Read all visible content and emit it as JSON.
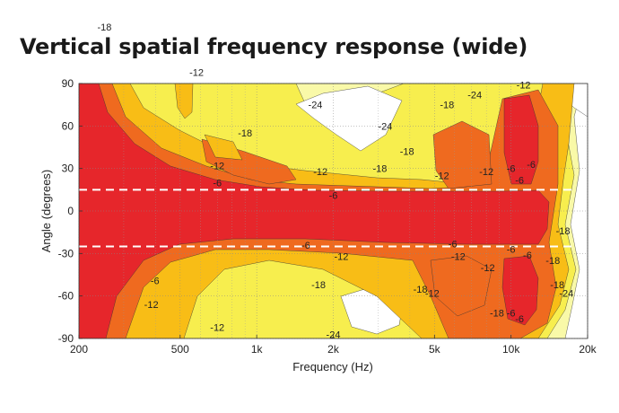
{
  "title": "Vertical spatial frequency response (wide)",
  "chart_data": {
    "type": "heatmap",
    "title": "Vertical spatial frequency response (wide)",
    "xlabel": "Frequency (Hz)",
    "ylabel": "Angle (degrees)",
    "x_scale": "log",
    "xlim": [
      200,
      20000
    ],
    "ylim": [
      -90,
      90
    ],
    "x_ticks": [
      200,
      500,
      1000,
      2000,
      5000,
      10000,
      20000
    ],
    "x_tick_labels": [
      "200",
      "500",
      "1k",
      "2k",
      "5k",
      "10k",
      "20k"
    ],
    "y_ticks": [
      90,
      60,
      30,
      0,
      -30,
      -60,
      -90
    ],
    "y_tick_labels": [
      "90",
      "60",
      "30",
      "0",
      "-30",
      "-60",
      "-90"
    ],
    "grid": true,
    "reference_lines_deg": [
      15,
      -25
    ],
    "contour_levels_db": [
      0,
      -6,
      -12,
      -18,
      -24
    ],
    "level_colors": {
      "0": "#e6262b",
      "-6": "#ef6a1f",
      "-12": "#f8bd16",
      "-18": "#f7ee4e",
      "-24": "#f9f9a8",
      "below": "#ffffff"
    },
    "contour_labels": [
      {
        "text": "-12",
        "x": 580,
        "y": 98
      },
      {
        "text": "-18",
        "x": 252,
        "y": 130
      },
      {
        "text": "-24",
        "x": 1700,
        "y": 75
      },
      {
        "text": "-18",
        "x": 900,
        "y": 55
      },
      {
        "text": "-24",
        "x": 3200,
        "y": 60
      },
      {
        "text": "-12",
        "x": 700,
        "y": 32
      },
      {
        "text": "-6",
        "x": 700,
        "y": 20
      },
      {
        "text": "-12",
        "x": 1780,
        "y": 28
      },
      {
        "text": "-18",
        "x": 3050,
        "y": 30
      },
      {
        "text": "-18",
        "x": 3900,
        "y": 42
      },
      {
        "text": "-18",
        "x": 5600,
        "y": 75
      },
      {
        "text": "-24",
        "x": 7200,
        "y": 82
      },
      {
        "text": "-12",
        "x": 11200,
        "y": 89
      },
      {
        "text": "-12",
        "x": 5350,
        "y": 25
      },
      {
        "text": "-12",
        "x": 8000,
        "y": 28
      },
      {
        "text": "-6",
        "x": 10000,
        "y": 30
      },
      {
        "text": "-6",
        "x": 12000,
        "y": 33
      },
      {
        "text": "-6",
        "x": 10800,
        "y": 22
      },
      {
        "text": "-6",
        "x": 2000,
        "y": 11
      },
      {
        "text": "-6",
        "x": 1560,
        "y": -24
      },
      {
        "text": "-12",
        "x": 2150,
        "y": -32
      },
      {
        "text": "-6",
        "x": 5900,
        "y": -23
      },
      {
        "text": "-12",
        "x": 6200,
        "y": -32
      },
      {
        "text": "-12",
        "x": 8100,
        "y": -40
      },
      {
        "text": "-6",
        "x": 10000,
        "y": -27
      },
      {
        "text": "-6",
        "x": 11600,
        "y": -31
      },
      {
        "text": "-6",
        "x": 398,
        "y": -49
      },
      {
        "text": "-12",
        "x": 385,
        "y": -66
      },
      {
        "text": "-12",
        "x": 700,
        "y": -82
      },
      {
        "text": "-18",
        "x": 1750,
        "y": -52
      },
      {
        "text": "-18",
        "x": 4400,
        "y": -55
      },
      {
        "text": "-12",
        "x": 4900,
        "y": -58
      },
      {
        "text": "-18",
        "x": 8800,
        "y": -72
      },
      {
        "text": "-6",
        "x": 10000,
        "y": -72
      },
      {
        "text": "-6",
        "x": 10800,
        "y": -76
      },
      {
        "text": "-18",
        "x": 15200,
        "y": -52
      },
      {
        "text": "-24",
        "x": 16500,
        "y": -58
      },
      {
        "text": "-24",
        "x": 2000,
        "y": -87
      },
      {
        "text": "-18",
        "x": 14600,
        "y": -35
      },
      {
        "text": "-18",
        "x": 16000,
        "y": -14
      }
    ]
  }
}
